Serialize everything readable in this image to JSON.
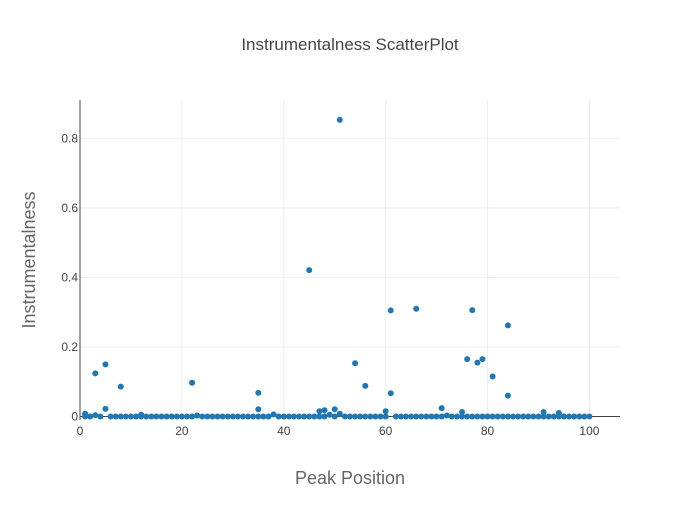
{
  "chart_data": {
    "type": "scatter",
    "title": "Instrumentalness ScatterPlot",
    "xlabel": "Peak Position",
    "ylabel": "Instrumentalness",
    "xlim": [
      0,
      106
    ],
    "ylim": [
      -0.01,
      0.91
    ],
    "x_ticks": [
      0,
      20,
      40,
      60,
      80,
      100
    ],
    "y_ticks": [
      0,
      0.2,
      0.4,
      0.6,
      0.8
    ],
    "grid": true,
    "legend": "none",
    "marker_color": "#1f77b4",
    "x": [
      1,
      1,
      2,
      3,
      3,
      4,
      5,
      5,
      6,
      7,
      8,
      8,
      9,
      10,
      11,
      12,
      12,
      13,
      14,
      15,
      16,
      17,
      18,
      19,
      20,
      21,
      22,
      22,
      23,
      24,
      25,
      26,
      27,
      28,
      29,
      30,
      31,
      32,
      33,
      34,
      35,
      35,
      35,
      36,
      37,
      38,
      39,
      40,
      41,
      42,
      43,
      44,
      45,
      45,
      46,
      47,
      47,
      48,
      48,
      49,
      50,
      50,
      51,
      51,
      52,
      53,
      54,
      54,
      55,
      56,
      56,
      57,
      58,
      59,
      60,
      60,
      61,
      61,
      62,
      63,
      64,
      65,
      66,
      66,
      67,
      68,
      69,
      70,
      71,
      71,
      72,
      73,
      74,
      75,
      75,
      76,
      76,
      77,
      77,
      78,
      78,
      79,
      79,
      80,
      81,
      81,
      82,
      83,
      84,
      84,
      84,
      85,
      86,
      87,
      88,
      89,
      90,
      91,
      91,
      92,
      93,
      94,
      94,
      95,
      96,
      97,
      98,
      99,
      100
    ],
    "y": [
      0.0,
      0.008,
      0.0,
      0.004,
      0.124,
      0.0,
      0.15,
      0.022,
      0.0,
      0.0,
      0.086,
      0.0,
      0.0,
      0.0,
      0.0,
      0.005,
      0.0,
      0.0,
      0.0,
      0.0,
      0.0,
      0.0,
      0.0,
      0.0,
      0.0,
      0.0,
      0.097,
      0.0,
      0.003,
      0.0,
      0.0,
      0.0,
      0.0,
      0.0,
      0.0,
      0.0,
      0.0,
      0.0,
      0.0,
      0.0,
      0.068,
      0.021,
      0.0,
      0.0,
      0.0,
      0.006,
      0.0,
      0.0,
      0.0,
      0.0,
      0.0,
      0.0,
      0.421,
      0.0,
      0.0,
      0.015,
      0.0,
      0.018,
      0.0,
      0.005,
      0.021,
      0.0,
      0.853,
      0.008,
      0.0,
      0.0,
      0.153,
      0.0,
      0.0,
      0.088,
      0.0,
      0.0,
      0.0,
      0.0,
      0.015,
      0.0,
      0.305,
      0.067,
      0.0,
      0.0,
      0.0,
      0.0,
      0.31,
      0.0,
      0.0,
      0.0,
      0.0,
      0.0,
      0.024,
      0.0,
      0.003,
      0.0,
      0.0,
      0.013,
      0.0,
      0.165,
      0.0,
      0.306,
      0.0,
      0.155,
      0.0,
      0.165,
      0.0,
      0.0,
      0.115,
      0.0,
      0.0,
      0.0,
      0.262,
      0.06,
      0.0,
      0.0,
      0.0,
      0.0,
      0.0,
      0.0,
      0.0,
      0.013,
      0.0,
      0.0,
      0.0,
      0.01,
      0.0,
      0.0,
      0.0,
      0.0,
      0.0,
      0.0,
      0.0
    ]
  }
}
